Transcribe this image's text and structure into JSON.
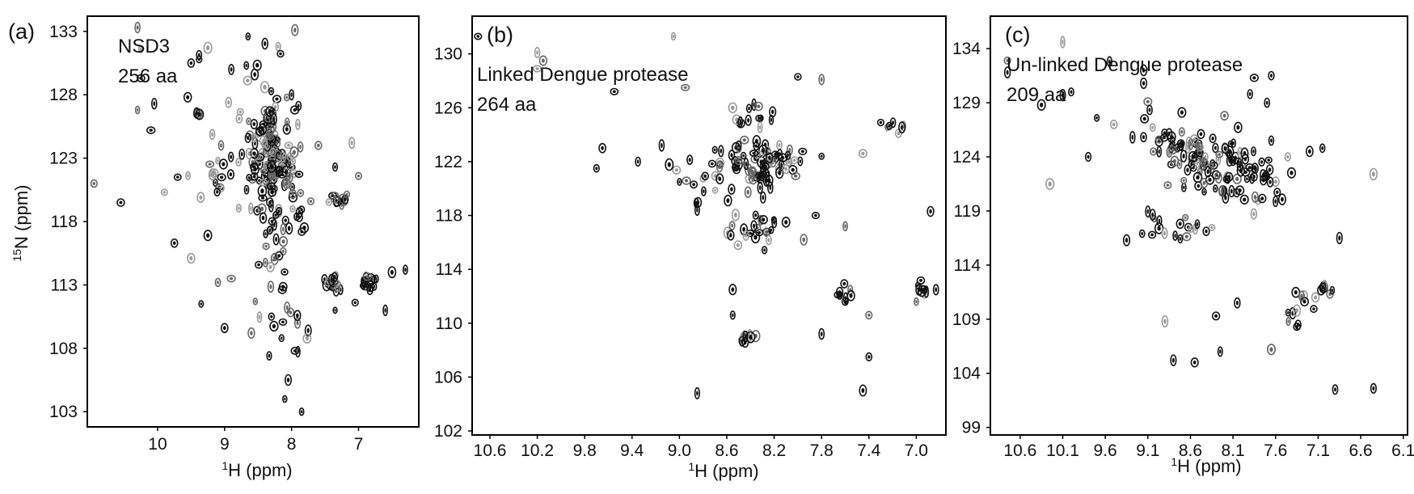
{
  "colors": {
    "contour_dark": "#111111",
    "contour_mid": "#666666",
    "contour_light": "#9a9a9a",
    "frame": "#000000"
  },
  "chart_data": [
    {
      "type": "scatter",
      "panel_label": "(a)",
      "annotation_lines": [
        "NSD3",
        "256 aa"
      ],
      "xlabel": "1H (ppm)",
      "ylabel": "15N (ppm)",
      "xlim": [
        11.05,
        6.1
      ],
      "ylim": [
        134.2,
        101.8
      ],
      "x_ticks": [
        10,
        9,
        8,
        7
      ],
      "x_tick_labels": [
        "10",
        "9",
        "8",
        "7"
      ],
      "y_ticks": [
        103,
        108,
        113,
        118,
        123,
        128,
        133
      ],
      "y_tick_labels": [
        "103",
        "108",
        "113",
        "118",
        "123",
        "128",
        "133"
      ],
      "peak_clusters": [
        {
          "x": 8.3,
          "y": 123.0,
          "sx": 0.28,
          "sy": 3.2,
          "n": 90,
          "seed": 11
        },
        {
          "x": 8.2,
          "y": 119.0,
          "sx": 0.45,
          "sy": 5.5,
          "n": 60,
          "seed": 12
        },
        {
          "x": 8.7,
          "y": 125.0,
          "sx": 0.75,
          "sy": 6.5,
          "n": 55,
          "seed": 13
        },
        {
          "x": 7.4,
          "y": 113.2,
          "sx": 0.15,
          "sy": 0.6,
          "n": 18,
          "seed": 14
        },
        {
          "x": 6.85,
          "y": 113.2,
          "sx": 0.12,
          "sy": 0.6,
          "n": 12,
          "seed": 15
        },
        {
          "x": 7.25,
          "y": 119.8,
          "sx": 0.14,
          "sy": 0.7,
          "n": 10,
          "seed": 16
        },
        {
          "x": 8.1,
          "y": 111.0,
          "sx": 0.55,
          "sy": 3.0,
          "n": 14,
          "seed": 17
        }
      ],
      "peaks": [
        [
          7.85,
          103.0
        ],
        [
          8.1,
          104.0
        ],
        [
          8.05,
          105.5
        ],
        [
          7.95,
          107.8
        ],
        [
          8.15,
          108.8
        ],
        [
          8.6,
          109.2
        ],
        [
          9.0,
          109.6
        ],
        [
          8.3,
          110.5
        ],
        [
          9.35,
          111.5
        ],
        [
          7.35,
          111.0
        ],
        [
          6.6,
          111.0
        ],
        [
          7.05,
          111.6
        ],
        [
          8.9,
          113.5
        ],
        [
          9.1,
          113.2
        ],
        [
          9.5,
          115.1
        ],
        [
          9.75,
          116.3
        ],
        [
          9.25,
          116.9
        ],
        [
          10.55,
          119.5
        ],
        [
          9.9,
          120.3
        ],
        [
          9.7,
          121.5
        ],
        [
          9.1,
          122.8
        ],
        [
          10.1,
          125.2
        ],
        [
          10.3,
          126.8
        ],
        [
          10.05,
          127.3
        ],
        [
          10.25,
          129.3
        ],
        [
          10.25,
          131.6
        ],
        [
          10.3,
          133.3
        ],
        [
          9.5,
          130.5
        ],
        [
          9.25,
          131.7
        ],
        [
          8.65,
          132.6
        ],
        [
          8.2,
          131.8
        ],
        [
          7.95,
          133.1
        ],
        [
          8.0,
          128.0
        ],
        [
          8.4,
          128.6
        ],
        [
          8.55,
          129.6
        ],
        [
          8.9,
          130.0
        ],
        [
          7.6,
          124.0
        ],
        [
          7.1,
          124.2
        ],
        [
          7.0,
          121.6
        ],
        [
          7.35,
          122.3
        ],
        [
          6.5,
          114.0
        ],
        [
          6.3,
          114.2
        ],
        [
          10.95,
          121.0
        ],
        [
          9.4,
          126.5
        ],
        [
          9.55,
          127.8
        ]
      ]
    },
    {
      "type": "scatter",
      "panel_label": "(b)",
      "annotation_lines": [
        "Linked Dengue protease",
        "264 aa"
      ],
      "xlabel": "1H (ppm)",
      "ylabel": "",
      "xlim": [
        10.75,
        6.75
      ],
      "ylim": [
        132.8,
        101.7
      ],
      "x_ticks": [
        10.6,
        10.2,
        9.8,
        9.4,
        9.0,
        8.6,
        8.2,
        7.8,
        7.4,
        7.0
      ],
      "x_tick_labels": [
        "10.6",
        "10.2",
        "9.8",
        "9.4",
        "9.0",
        "8.6",
        "8.2",
        "7.8",
        "7.4",
        "7.0"
      ],
      "y_ticks": [
        102,
        106,
        110,
        114,
        118,
        122,
        126,
        130
      ],
      "y_tick_labels": [
        "102",
        "106",
        "110",
        "114",
        "118",
        "122",
        "126",
        "130"
      ],
      "peak_clusters": [
        {
          "x": 8.3,
          "y": 122.0,
          "sx": 0.28,
          "sy": 1.9,
          "n": 75,
          "seed": 21
        },
        {
          "x": 8.35,
          "y": 117.0,
          "sx": 0.25,
          "sy": 1.2,
          "n": 22,
          "seed": 22
        },
        {
          "x": 8.75,
          "y": 121.0,
          "sx": 0.35,
          "sy": 2.0,
          "n": 18,
          "seed": 23
        },
        {
          "x": 7.6,
          "y": 112.3,
          "sx": 0.1,
          "sy": 0.7,
          "n": 8,
          "seed": 24
        },
        {
          "x": 6.9,
          "y": 112.7,
          "sx": 0.1,
          "sy": 0.6,
          "n": 8,
          "seed": 25
        },
        {
          "x": 8.45,
          "y": 109.0,
          "sx": 0.1,
          "sy": 0.8,
          "n": 9,
          "seed": 26
        },
        {
          "x": 7.2,
          "y": 124.7,
          "sx": 0.08,
          "sy": 0.4,
          "n": 5,
          "seed": 27
        },
        {
          "x": 8.35,
          "y": 125.5,
          "sx": 0.2,
          "sy": 1.1,
          "n": 12,
          "seed": 28
        }
      ],
      "peaks": [
        [
          8.85,
          104.8
        ],
        [
          7.45,
          105.0
        ],
        [
          7.4,
          107.5
        ],
        [
          7.8,
          109.2
        ],
        [
          8.55,
          110.6
        ],
        [
          8.55,
          112.5
        ],
        [
          7.4,
          110.6
        ],
        [
          7.0,
          111.6
        ],
        [
          6.88,
          118.3
        ],
        [
          10.15,
          129.5
        ],
        [
          10.2,
          130.1
        ],
        [
          10.2,
          128.9
        ],
        [
          10.7,
          131.3
        ],
        [
          9.05,
          131.3
        ],
        [
          9.7,
          121.5
        ],
        [
          9.0,
          120.5
        ],
        [
          9.15,
          123.2
        ],
        [
          9.55,
          127.2
        ],
        [
          8.95,
          127.5
        ],
        [
          8.55,
          126.0
        ],
        [
          8.0,
          128.3
        ],
        [
          7.8,
          128.1
        ],
        [
          7.8,
          122.4
        ],
        [
          7.45,
          122.6
        ],
        [
          7.15,
          124.1
        ],
        [
          7.3,
          124.9
        ],
        [
          7.6,
          117.2
        ],
        [
          7.85,
          118.0
        ],
        [
          8.1,
          117.5
        ],
        [
          7.95,
          116.2
        ],
        [
          9.35,
          122.0
        ],
        [
          8.85,
          118.4
        ],
        [
          9.65,
          123.0
        ]
      ]
    },
    {
      "type": "scatter",
      "panel_label": "(c)",
      "annotation_lines": [
        "Un-linked Dengue protease",
        "209 aa"
      ],
      "xlabel": "1H (ppm)",
      "ylabel": "",
      "xlim": [
        10.95,
        6.05
      ],
      "ylim": [
        137.0,
        98.3
      ],
      "x_ticks": [
        10.6,
        10.1,
        9.6,
        9.1,
        8.6,
        8.1,
        7.6,
        7.1,
        6.6,
        6.1
      ],
      "x_tick_labels": [
        "10.6",
        "10.1",
        "9.6",
        "9.1",
        "8.6",
        "8.1",
        "7.6",
        "7.1",
        "6.6",
        "6.1"
      ],
      "y_ticks": [
        99,
        104,
        109,
        114,
        119,
        124,
        129,
        134
      ],
      "y_tick_labels": [
        "99",
        "104",
        "109",
        "114",
        "119",
        "124",
        "129",
        "134"
      ],
      "peak_clusters": [
        {
          "x": 8.3,
          "y": 123.5,
          "sx": 0.5,
          "sy": 2.6,
          "n": 80,
          "seed": 31
        },
        {
          "x": 8.9,
          "y": 125.5,
          "sx": 0.45,
          "sy": 2.4,
          "n": 25,
          "seed": 32
        },
        {
          "x": 7.8,
          "y": 122.0,
          "sx": 0.35,
          "sy": 3.0,
          "n": 25,
          "seed": 33
        },
        {
          "x": 8.7,
          "y": 117.5,
          "sx": 0.5,
          "sy": 1.6,
          "n": 18,
          "seed": 34
        },
        {
          "x": 7.0,
          "y": 111.5,
          "sx": 0.1,
          "sy": 0.8,
          "n": 8,
          "seed": 35
        },
        {
          "x": 7.4,
          "y": 110.5,
          "sx": 0.2,
          "sy": 2.0,
          "n": 10,
          "seed": 36
        }
      ],
      "peaks": [
        [
          6.9,
          102.5
        ],
        [
          6.45,
          102.6
        ],
        [
          8.8,
          105.2
        ],
        [
          8.55,
          105.0
        ],
        [
          8.25,
          106.0
        ],
        [
          7.65,
          106.2
        ],
        [
          8.9,
          108.8
        ],
        [
          8.3,
          109.3
        ],
        [
          7.45,
          108.8
        ],
        [
          7.35,
          108.3
        ],
        [
          8.05,
          110.5
        ],
        [
          6.85,
          116.5
        ],
        [
          9.35,
          116.3
        ],
        [
          9.05,
          116.8
        ],
        [
          10.25,
          121.5
        ],
        [
          10.75,
          131.8
        ],
        [
          10.75,
          132.9
        ],
        [
          10.35,
          128.8
        ],
        [
          10.1,
          129.7
        ],
        [
          10.0,
          130.0
        ],
        [
          9.7,
          127.6
        ],
        [
          9.5,
          127.0
        ],
        [
          9.15,
          130.8
        ],
        [
          9.15,
          132.0
        ],
        [
          9.55,
          132.8
        ],
        [
          10.1,
          134.6
        ],
        [
          9.1,
          129.1
        ],
        [
          8.7,
          128.1
        ],
        [
          8.2,
          127.8
        ],
        [
          7.9,
          129.8
        ],
        [
          7.7,
          129.0
        ],
        [
          7.2,
          124.5
        ],
        [
          7.05,
          124.8
        ],
        [
          6.45,
          122.4
        ],
        [
          7.65,
          125.5
        ],
        [
          7.85,
          131.3
        ],
        [
          7.65,
          131.5
        ],
        [
          9.8,
          124.0
        ]
      ]
    }
  ]
}
